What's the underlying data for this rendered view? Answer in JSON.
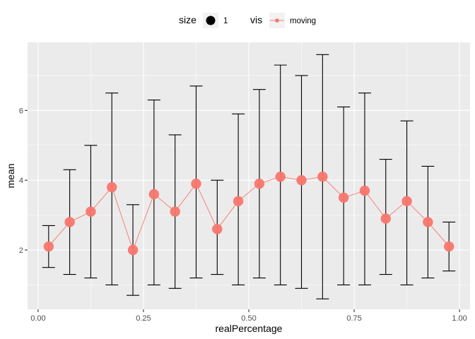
{
  "chart_data": {
    "type": "scatter",
    "xlabel": "realPercentage",
    "ylabel": "mean",
    "xlim": [
      -0.025,
      1.025
    ],
    "ylim": [
      0.3,
      7.95
    ],
    "x_ticks": [
      0,
      0.25,
      0.5,
      0.75,
      1
    ],
    "x_tick_labels": [
      "0.00",
      "0.25",
      "0.50",
      "0.75",
      "1.00"
    ],
    "x_minor_ticks": [
      0.125,
      0.375,
      0.625,
      0.875
    ],
    "y_ticks": [
      2,
      4,
      6
    ],
    "y_tick_labels": [
      "2",
      "4",
      "6"
    ],
    "y_minor_ticks": [
      1,
      3,
      5,
      7
    ],
    "grid": true,
    "background_color": "#ebebeb",
    "legend": {
      "position": "top",
      "size_title": "size",
      "size_label": "1",
      "vis_title": "vis",
      "vis_label": "moving"
    },
    "series": [
      {
        "name": "moving",
        "color": "#f8766d",
        "error_bar_color": "#000000",
        "x": [
          0.025,
          0.075,
          0.125,
          0.175,
          0.225,
          0.275,
          0.325,
          0.375,
          0.425,
          0.475,
          0.525,
          0.575,
          0.625,
          0.675,
          0.725,
          0.775,
          0.825,
          0.875,
          0.925,
          0.975
        ],
        "y": [
          2.1,
          2.8,
          3.1,
          3.8,
          2.0,
          3.6,
          3.1,
          3.9,
          2.6,
          3.4,
          3.9,
          4.1,
          4.0,
          4.1,
          3.5,
          3.7,
          2.9,
          3.4,
          2.8,
          2.1
        ],
        "ymin": [
          1.5,
          1.3,
          1.2,
          1.0,
          0.7,
          1.0,
          0.9,
          1.2,
          1.3,
          1.0,
          1.2,
          1.0,
          0.9,
          0.6,
          1.0,
          1.0,
          1.3,
          1.0,
          1.2,
          1.4
        ],
        "ymax": [
          2.7,
          4.3,
          5.0,
          6.5,
          3.3,
          6.3,
          5.3,
          6.7,
          4.0,
          5.9,
          6.6,
          7.3,
          7.0,
          7.6,
          6.1,
          6.5,
          4.6,
          5.7,
          4.4,
          2.8
        ]
      }
    ]
  }
}
